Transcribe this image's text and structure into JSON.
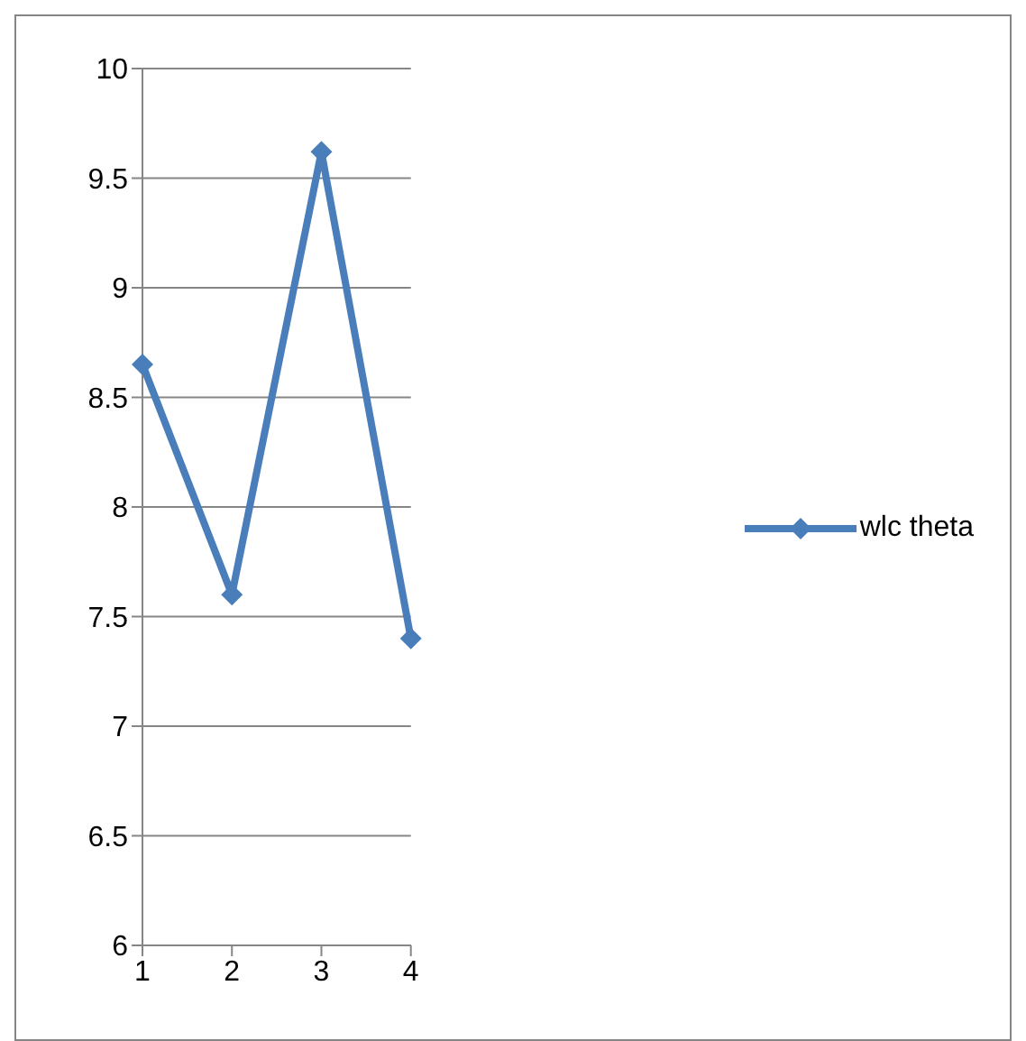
{
  "chart_data": {
    "type": "line",
    "categories": [
      "1",
      "2",
      "3",
      "4"
    ],
    "series": [
      {
        "name": "wlc theta",
        "color": "#4a7ebb",
        "values": [
          8.65,
          7.6,
          9.62,
          7.4
        ]
      }
    ],
    "ylim": [
      6,
      10
    ],
    "yticks": [
      6,
      6.5,
      7,
      7.5,
      8,
      8.5,
      9,
      9.5,
      10
    ],
    "grid": "y",
    "legend": "right",
    "marker": "diamond",
    "line_style": "solid"
  }
}
